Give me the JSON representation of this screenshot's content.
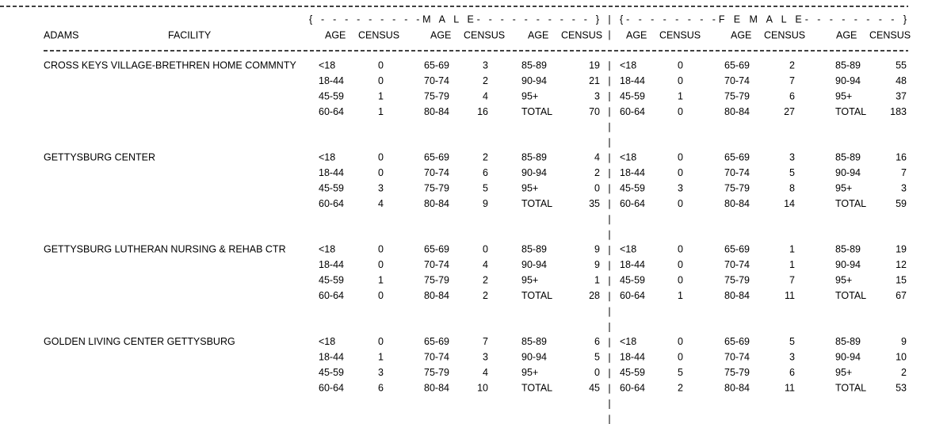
{
  "header": {
    "county": "ADAMS",
    "facility": "FACILITY",
    "male_group": "{ - - - - - - - - -M A L E- - - - - - - - - - }",
    "female_group": "{- - - - - - - -F E M A L E- - - - - - - - }",
    "age": "AGE",
    "census": "CENSUS"
  },
  "facilities": [
    {
      "name": "CROSS KEYS VILLAGE-BRETHREN HOME COMMNTY",
      "male": [
        [
          "<18",
          0,
          "65-69",
          3,
          "85-89",
          19
        ],
        [
          "18-44",
          0,
          "70-74",
          2,
          "90-94",
          21
        ],
        [
          "45-59",
          1,
          "75-79",
          4,
          "95+",
          3
        ],
        [
          "60-64",
          1,
          "80-84",
          16,
          "TOTAL",
          70
        ]
      ],
      "female": [
        [
          "<18",
          0,
          "65-69",
          2,
          "85-89",
          55
        ],
        [
          "18-44",
          0,
          "70-74",
          7,
          "90-94",
          48
        ],
        [
          "45-59",
          1,
          "75-79",
          6,
          "95+",
          37
        ],
        [
          "60-64",
          0,
          "80-84",
          27,
          "TOTAL",
          183
        ]
      ]
    },
    {
      "name": "GETTYSBURG CENTER",
      "male": [
        [
          "<18",
          0,
          "65-69",
          2,
          "85-89",
          4
        ],
        [
          "18-44",
          0,
          "70-74",
          6,
          "90-94",
          2
        ],
        [
          "45-59",
          3,
          "75-79",
          5,
          "95+",
          0
        ],
        [
          "60-64",
          4,
          "80-84",
          9,
          "TOTAL",
          35
        ]
      ],
      "female": [
        [
          "<18",
          0,
          "65-69",
          3,
          "85-89",
          16
        ],
        [
          "18-44",
          0,
          "70-74",
          5,
          "90-94",
          7
        ],
        [
          "45-59",
          3,
          "75-79",
          8,
          "95+",
          3
        ],
        [
          "60-64",
          0,
          "80-84",
          14,
          "TOTAL",
          59
        ]
      ]
    },
    {
      "name": "GETTYSBURG LUTHERAN NURSING & REHAB CTR",
      "male": [
        [
          "<18",
          0,
          "65-69",
          0,
          "85-89",
          9
        ],
        [
          "18-44",
          0,
          "70-74",
          4,
          "90-94",
          9
        ],
        [
          "45-59",
          1,
          "75-79",
          2,
          "95+",
          1
        ],
        [
          "60-64",
          0,
          "80-84",
          2,
          "TOTAL",
          28
        ]
      ],
      "female": [
        [
          "<18",
          0,
          "65-69",
          1,
          "85-89",
          19
        ],
        [
          "18-44",
          0,
          "70-74",
          1,
          "90-94",
          12
        ],
        [
          "45-59",
          0,
          "75-79",
          7,
          "95+",
          15
        ],
        [
          "60-64",
          1,
          "80-84",
          11,
          "TOTAL",
          67
        ]
      ]
    },
    {
      "name": "GOLDEN LIVING CENTER GETTYSBURG",
      "male": [
        [
          "<18",
          0,
          "65-69",
          7,
          "85-89",
          6
        ],
        [
          "18-44",
          1,
          "70-74",
          3,
          "90-94",
          5
        ],
        [
          "45-59",
          3,
          "75-79",
          4,
          "95+",
          0
        ],
        [
          "60-64",
          6,
          "80-84",
          10,
          "TOTAL",
          45
        ]
      ],
      "female": [
        [
          "<18",
          0,
          "65-69",
          5,
          "85-89",
          9
        ],
        [
          "18-44",
          0,
          "70-74",
          3,
          "90-94",
          10
        ],
        [
          "45-59",
          5,
          "75-79",
          6,
          "95+",
          2
        ],
        [
          "60-64",
          2,
          "80-84",
          11,
          "TOTAL",
          53
        ]
      ]
    }
  ]
}
